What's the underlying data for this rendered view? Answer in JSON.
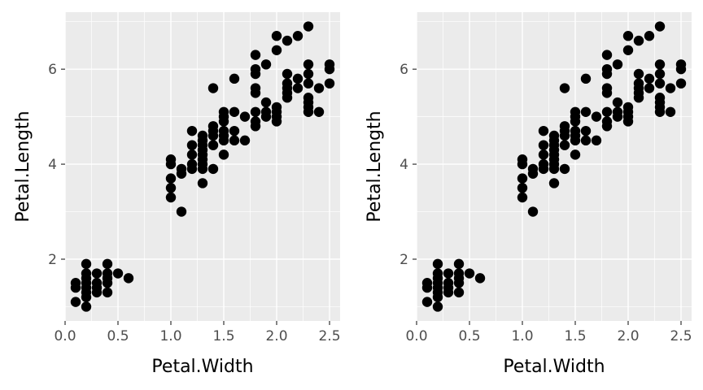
{
  "chart_data": [
    {
      "type": "scatter",
      "title": "",
      "xlabel": "Petal.Width",
      "ylabel": "Petal.Length",
      "xlim": [
        0.0,
        2.6
      ],
      "ylim": [
        0.7,
        7.2
      ],
      "xticks": [
        0.0,
        0.5,
        1.0,
        1.5,
        2.0,
        2.5
      ],
      "xtick_labels": [
        "0.0",
        "0.5",
        "1.0",
        "1.5",
        "2.0",
        "2.5"
      ],
      "yticks": [
        2,
        4,
        6
      ],
      "ytick_labels": [
        "2",
        "4",
        "6"
      ],
      "grid": true,
      "legend": "none",
      "point_color": "#000000",
      "panel_color": "#ebebeb",
      "series": [
        {
          "points": [
            [
              0.1,
              1.1
            ],
            [
              0.1,
              1.4
            ],
            [
              0.1,
              1.5
            ],
            [
              0.2,
              1.0
            ],
            [
              0.2,
              1.2
            ],
            [
              0.2,
              1.3
            ],
            [
              0.2,
              1.4
            ],
            [
              0.2,
              1.5
            ],
            [
              0.2,
              1.6
            ],
            [
              0.2,
              1.7
            ],
            [
              0.2,
              1.9
            ],
            [
              0.3,
              1.3
            ],
            [
              0.3,
              1.4
            ],
            [
              0.3,
              1.5
            ],
            [
              0.3,
              1.7
            ],
            [
              0.4,
              1.3
            ],
            [
              0.4,
              1.5
            ],
            [
              0.4,
              1.6
            ],
            [
              0.4,
              1.7
            ],
            [
              0.4,
              1.9
            ],
            [
              0.5,
              1.7
            ],
            [
              0.6,
              1.6
            ],
            [
              1.0,
              3.3
            ],
            [
              1.0,
              3.5
            ],
            [
              1.0,
              3.7
            ],
            [
              1.0,
              4.0
            ],
            [
              1.0,
              4.1
            ],
            [
              1.1,
              3.0
            ],
            [
              1.1,
              3.8
            ],
            [
              1.1,
              3.9
            ],
            [
              1.2,
              3.9
            ],
            [
              1.2,
              4.0
            ],
            [
              1.2,
              4.2
            ],
            [
              1.2,
              4.4
            ],
            [
              1.2,
              4.7
            ],
            [
              1.3,
              3.6
            ],
            [
              1.3,
              3.9
            ],
            [
              1.3,
              4.0
            ],
            [
              1.3,
              4.1
            ],
            [
              1.3,
              4.2
            ],
            [
              1.3,
              4.3
            ],
            [
              1.3,
              4.4
            ],
            [
              1.3,
              4.5
            ],
            [
              1.3,
              4.6
            ],
            [
              1.4,
              3.9
            ],
            [
              1.4,
              4.4
            ],
            [
              1.4,
              4.6
            ],
            [
              1.4,
              4.7
            ],
            [
              1.4,
              4.8
            ],
            [
              1.4,
              5.6
            ],
            [
              1.5,
              4.2
            ],
            [
              1.5,
              4.5
            ],
            [
              1.5,
              4.6
            ],
            [
              1.5,
              4.7
            ],
            [
              1.5,
              4.9
            ],
            [
              1.5,
              5.0
            ],
            [
              1.5,
              5.1
            ],
            [
              1.6,
              4.5
            ],
            [
              1.6,
              4.7
            ],
            [
              1.6,
              5.1
            ],
            [
              1.6,
              5.8
            ],
            [
              1.7,
              4.5
            ],
            [
              1.7,
              5.0
            ],
            [
              1.8,
              4.8
            ],
            [
              1.8,
              4.9
            ],
            [
              1.8,
              5.1
            ],
            [
              1.8,
              5.5
            ],
            [
              1.8,
              5.6
            ],
            [
              1.8,
              5.9
            ],
            [
              1.8,
              6.0
            ],
            [
              1.8,
              6.3
            ],
            [
              1.9,
              5.0
            ],
            [
              1.9,
              5.1
            ],
            [
              1.9,
              5.3
            ],
            [
              1.9,
              6.1
            ],
            [
              2.0,
              4.9
            ],
            [
              2.0,
              5.0
            ],
            [
              2.0,
              5.1
            ],
            [
              2.0,
              5.2
            ],
            [
              2.0,
              6.4
            ],
            [
              2.0,
              6.7
            ],
            [
              2.1,
              5.4
            ],
            [
              2.1,
              5.5
            ],
            [
              2.1,
              5.6
            ],
            [
              2.1,
              5.7
            ],
            [
              2.1,
              5.9
            ],
            [
              2.1,
              6.6
            ],
            [
              2.2,
              5.6
            ],
            [
              2.2,
              5.8
            ],
            [
              2.2,
              6.7
            ],
            [
              2.3,
              5.1
            ],
            [
              2.3,
              5.2
            ],
            [
              2.3,
              5.3
            ],
            [
              2.3,
              5.4
            ],
            [
              2.3,
              5.7
            ],
            [
              2.3,
              5.9
            ],
            [
              2.3,
              6.1
            ],
            [
              2.3,
              6.9
            ],
            [
              2.4,
              5.1
            ],
            [
              2.4,
              5.6
            ],
            [
              2.5,
              5.7
            ],
            [
              2.5,
              6.0
            ],
            [
              2.5,
              6.1
            ]
          ]
        }
      ]
    },
    {
      "type": "scatter",
      "title": "",
      "xlabel": "Petal.Width",
      "ylabel": "Petal.Length",
      "xlim": [
        0.0,
        2.6
      ],
      "ylim": [
        0.7,
        7.2
      ],
      "xticks": [
        0.0,
        0.5,
        1.0,
        1.5,
        2.0,
        2.5
      ],
      "xtick_labels": [
        "0.0",
        "0.5",
        "1.0",
        "1.5",
        "2.0",
        "2.5"
      ],
      "yticks": [
        2,
        4,
        6
      ],
      "ytick_labels": [
        "2",
        "4",
        "6"
      ],
      "grid": true,
      "legend": "none",
      "point_color": "#000000",
      "panel_color": "#ebebeb",
      "series": [
        {
          "points": [
            [
              0.1,
              1.1
            ],
            [
              0.1,
              1.4
            ],
            [
              0.1,
              1.5
            ],
            [
              0.2,
              1.0
            ],
            [
              0.2,
              1.2
            ],
            [
              0.2,
              1.3
            ],
            [
              0.2,
              1.4
            ],
            [
              0.2,
              1.5
            ],
            [
              0.2,
              1.6
            ],
            [
              0.2,
              1.7
            ],
            [
              0.2,
              1.9
            ],
            [
              0.3,
              1.3
            ],
            [
              0.3,
              1.4
            ],
            [
              0.3,
              1.5
            ],
            [
              0.3,
              1.7
            ],
            [
              0.4,
              1.3
            ],
            [
              0.4,
              1.5
            ],
            [
              0.4,
              1.6
            ],
            [
              0.4,
              1.7
            ],
            [
              0.4,
              1.9
            ],
            [
              0.5,
              1.7
            ],
            [
              0.6,
              1.6
            ],
            [
              1.0,
              3.3
            ],
            [
              1.0,
              3.5
            ],
            [
              1.0,
              3.7
            ],
            [
              1.0,
              4.0
            ],
            [
              1.0,
              4.1
            ],
            [
              1.1,
              3.0
            ],
            [
              1.1,
              3.8
            ],
            [
              1.1,
              3.9
            ],
            [
              1.2,
              3.9
            ],
            [
              1.2,
              4.0
            ],
            [
              1.2,
              4.2
            ],
            [
              1.2,
              4.4
            ],
            [
              1.2,
              4.7
            ],
            [
              1.3,
              3.6
            ],
            [
              1.3,
              3.9
            ],
            [
              1.3,
              4.0
            ],
            [
              1.3,
              4.1
            ],
            [
              1.3,
              4.2
            ],
            [
              1.3,
              4.3
            ],
            [
              1.3,
              4.4
            ],
            [
              1.3,
              4.5
            ],
            [
              1.3,
              4.6
            ],
            [
              1.4,
              3.9
            ],
            [
              1.4,
              4.4
            ],
            [
              1.4,
              4.6
            ],
            [
              1.4,
              4.7
            ],
            [
              1.4,
              4.8
            ],
            [
              1.4,
              5.6
            ],
            [
              1.5,
              4.2
            ],
            [
              1.5,
              4.5
            ],
            [
              1.5,
              4.6
            ],
            [
              1.5,
              4.7
            ],
            [
              1.5,
              4.9
            ],
            [
              1.5,
              5.0
            ],
            [
              1.5,
              5.1
            ],
            [
              1.6,
              4.5
            ],
            [
              1.6,
              4.7
            ],
            [
              1.6,
              5.1
            ],
            [
              1.6,
              5.8
            ],
            [
              1.7,
              4.5
            ],
            [
              1.7,
              5.0
            ],
            [
              1.8,
              4.8
            ],
            [
              1.8,
              4.9
            ],
            [
              1.8,
              5.1
            ],
            [
              1.8,
              5.5
            ],
            [
              1.8,
              5.6
            ],
            [
              1.8,
              5.9
            ],
            [
              1.8,
              6.0
            ],
            [
              1.8,
              6.3
            ],
            [
              1.9,
              5.0
            ],
            [
              1.9,
              5.1
            ],
            [
              1.9,
              5.3
            ],
            [
              1.9,
              6.1
            ],
            [
              2.0,
              4.9
            ],
            [
              2.0,
              5.0
            ],
            [
              2.0,
              5.1
            ],
            [
              2.0,
              5.2
            ],
            [
              2.0,
              6.4
            ],
            [
              2.0,
              6.7
            ],
            [
              2.1,
              5.4
            ],
            [
              2.1,
              5.5
            ],
            [
              2.1,
              5.6
            ],
            [
              2.1,
              5.7
            ],
            [
              2.1,
              5.9
            ],
            [
              2.1,
              6.6
            ],
            [
              2.2,
              5.6
            ],
            [
              2.2,
              5.8
            ],
            [
              2.2,
              6.7
            ],
            [
              2.3,
              5.1
            ],
            [
              2.3,
              5.2
            ],
            [
              2.3,
              5.3
            ],
            [
              2.3,
              5.4
            ],
            [
              2.3,
              5.7
            ],
            [
              2.3,
              5.9
            ],
            [
              2.3,
              6.1
            ],
            [
              2.3,
              6.9
            ],
            [
              2.4,
              5.1
            ],
            [
              2.4,
              5.6
            ],
            [
              2.5,
              5.7
            ],
            [
              2.5,
              6.0
            ],
            [
              2.5,
              6.1
            ]
          ]
        }
      ]
    }
  ]
}
